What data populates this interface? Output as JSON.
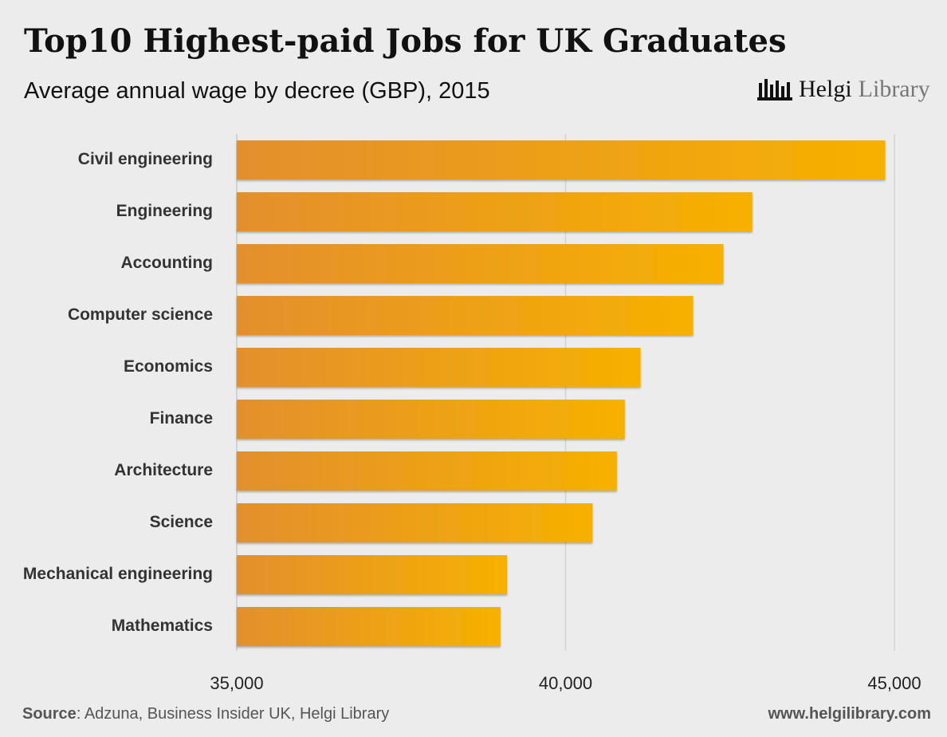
{
  "chart_data": {
    "type": "bar",
    "orientation": "horizontal",
    "title": "Top10 Highest-paid Jobs for UK Graduates",
    "subtitle": "Average annual wage by decree (GBP), 2015",
    "categories": [
      "Civil engineering",
      "Engineering",
      "Accounting",
      "Computer science",
      "Economics",
      "Finance",
      "Architecture",
      "Science",
      "Mechanical engineering",
      "Mathematics"
    ],
    "values": [
      44860,
      42840,
      42400,
      41940,
      41140,
      40900,
      40780,
      40410,
      39110,
      39010
    ],
    "xlim": [
      35000,
      45000
    ],
    "xticks": [
      {
        "value": 35000,
        "label": "35,000"
      },
      {
        "value": 40000,
        "label": "40,000"
      },
      {
        "value": 45000,
        "label": "45,000"
      }
    ],
    "grid": true,
    "colors": {
      "bar_start": "#e2902e",
      "bar_end": "#f6b100",
      "grid": "#d3d3d3",
      "axis": "#c9c9c9",
      "background": "#ececec"
    }
  },
  "branding": {
    "logo_icon": "helgi-library-logo-icon",
    "logo_primary": "Helgi",
    "logo_secondary": "Library"
  },
  "footer": {
    "source_prefix": "Source",
    "source_text": ": Adzuna, Business Insider UK, Helgi Library",
    "website": "www.helgilibrary.com"
  }
}
